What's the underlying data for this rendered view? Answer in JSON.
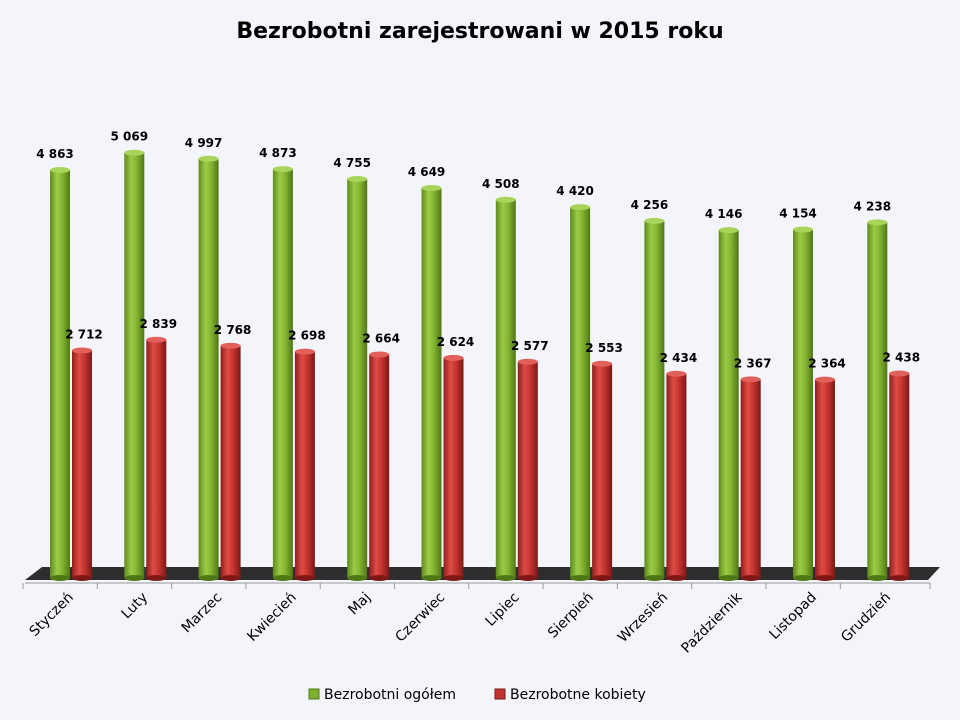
{
  "chart_data": {
    "type": "bar",
    "title": "Bezrobotni zarejestrowani w 2015 roku",
    "categories": [
      "Styczeń",
      "Luty",
      "Marzec",
      "Kwiecień",
      "Maj",
      "Czerwiec",
      "Lipiec",
      "Sierpień",
      "Wrzesień",
      "Październik",
      "Listopad",
      "Grudzień"
    ],
    "series": [
      {
        "name": "Bezrobotni ogółem",
        "color": "#7FAF2E",
        "values": [
          4863,
          5069,
          4997,
          4873,
          4755,
          4649,
          4508,
          4420,
          4256,
          4146,
          4154,
          4238
        ],
        "labels": [
          "4 863",
          "5 069",
          "4 997",
          "4 873",
          "4 755",
          "4 649",
          "4 508",
          "4 420",
          "4 256",
          "4 146",
          "4 154",
          "4 238"
        ]
      },
      {
        "name": "Bezrobotne kobiety",
        "color": "#C0332F",
        "values": [
          2712,
          2839,
          2768,
          2698,
          2664,
          2624,
          2577,
          2553,
          2434,
          2367,
          2364,
          2438
        ],
        "labels": [
          "2 712",
          "2 839",
          "2 768",
          "2 698",
          "2 664",
          "2 624",
          "2 577",
          "2 553",
          "2 434",
          "2 367",
          "2 364",
          "2 438"
        ]
      }
    ],
    "xlabel": "",
    "ylabel": "",
    "ylim": [
      0,
      5200
    ],
    "grid": false,
    "legend": "bottom"
  }
}
